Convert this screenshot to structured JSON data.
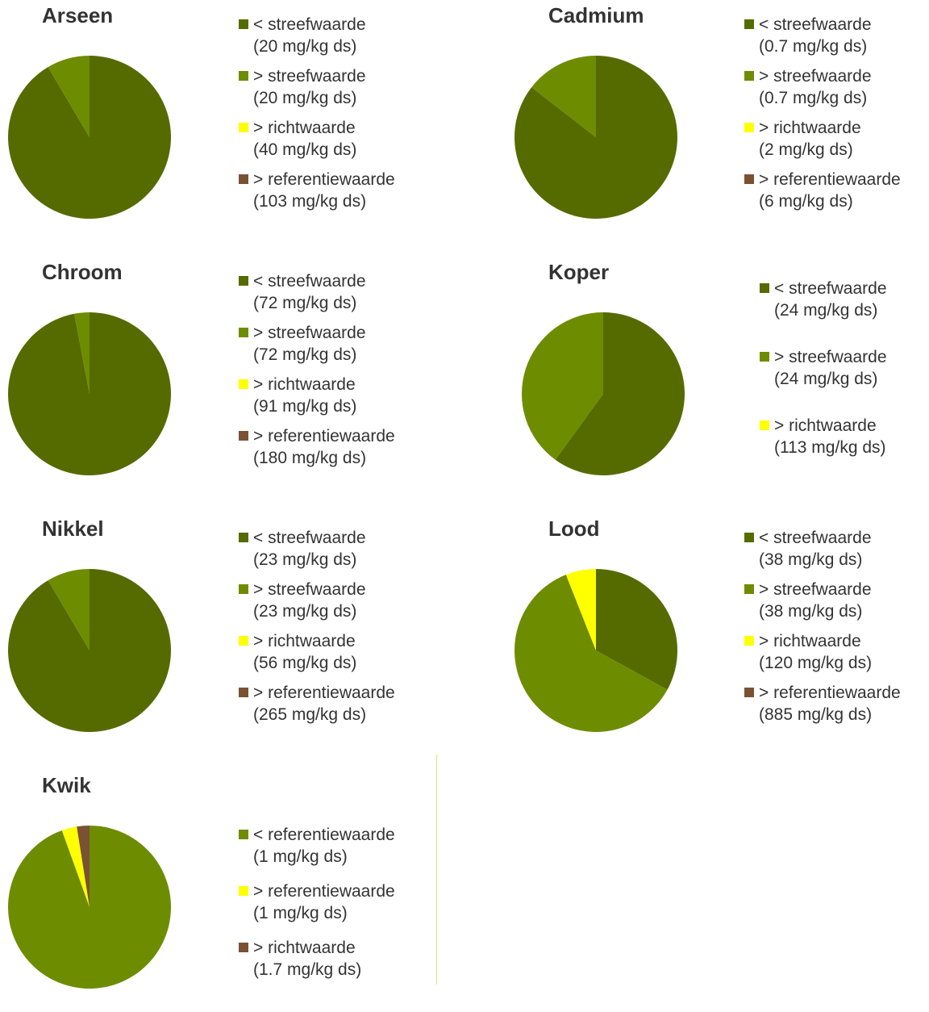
{
  "colors": {
    "below_target": "#556b00",
    "above_target": "#6e8c00",
    "above_guide": "#ffff00",
    "above_reference": "#7a5133",
    "divider": "#d9e38a"
  },
  "chart_data": [
    {
      "type": "pie",
      "title": "Arseen",
      "labels": [
        "< streefwaarde (20 mg/kg ds)",
        "> streefwaarde (20 mg/kg ds)",
        "> richtwaarde (40 mg/kg ds)",
        "> referentiewaarde (103 mg/kg ds)"
      ],
      "legend": [
        {
          "text": "< streefwaarde",
          "sub": "(20 mg/kg ds)",
          "color": "#556b00"
        },
        {
          "text": "> streefwaarde",
          "sub": "(20 mg/kg ds)",
          "color": "#6e8c00"
        },
        {
          "text": "> richtwaarde",
          "sub": "(40 mg/kg ds)",
          "color": "#ffff00"
        },
        {
          "text": "> referentiewaarde",
          "sub": "(103 mg/kg ds)",
          "color": "#7a5133"
        }
      ],
      "values": [
        91.5,
        8.5,
        0,
        0
      ],
      "legend_position": "right"
    },
    {
      "type": "pie",
      "title": "Cadmium",
      "labels": [
        "< streefwaarde (0.7 mg/kg ds)",
        "> streefwaarde (0.7 mg/kg ds)",
        "> richtwaarde (2 mg/kg ds)",
        "> referentiewaarde (6 mg/kg ds)"
      ],
      "legend": [
        {
          "text": "< streefwaarde",
          "sub": "(0.7 mg/kg ds)",
          "color": "#556b00"
        },
        {
          "text": "> streefwaarde",
          "sub": "(0.7 mg/kg ds)",
          "color": "#6e8c00"
        },
        {
          "text": "> richtwaarde",
          "sub": "(2 mg/kg ds)",
          "color": "#ffff00"
        },
        {
          "text": "> referentiewaarde",
          "sub": "(6 mg/kg ds)",
          "color": "#7a5133"
        }
      ],
      "values": [
        85.5,
        14.5,
        0,
        0
      ],
      "legend_position": "right"
    },
    {
      "type": "pie",
      "title": "Chroom",
      "labels": [
        "< streefwaarde (72 mg/kg ds)",
        "> streefwaarde (72 mg/kg ds)",
        "> richtwaarde (91 mg/kg ds)",
        "> referentiewaarde (180 mg/kg ds)"
      ],
      "legend": [
        {
          "text": "< streefwaarde",
          "sub": "(72 mg/kg ds)",
          "color": "#556b00"
        },
        {
          "text": "> streefwaarde",
          "sub": "(72 mg/kg ds)",
          "color": "#6e8c00"
        },
        {
          "text": "> richtwaarde",
          "sub": "(91 mg/kg ds)",
          "color": "#ffff00"
        },
        {
          "text": "> referentiewaarde",
          "sub": "(180 mg/kg ds)",
          "color": "#7a5133"
        }
      ],
      "values": [
        97,
        3,
        0,
        0
      ],
      "legend_position": "right"
    },
    {
      "type": "pie",
      "title": "Koper",
      "labels": [
        "< streefwaarde (24 mg/kg ds)",
        "> streefwaarde (24 mg/kg ds)",
        "> richtwaarde (113 mg/kg ds)"
      ],
      "legend": [
        {
          "text": "< streefwaarde",
          "sub": "(24 mg/kg ds)",
          "color": "#556b00"
        },
        {
          "text": "> streefwaarde",
          "sub": "(24 mg/kg ds)",
          "color": "#6e8c00"
        },
        {
          "text": "> richtwaarde",
          "sub": "(113 mg/kg ds)",
          "color": "#ffff00"
        }
      ],
      "values": [
        60,
        40,
        0
      ],
      "legend_position": "right"
    },
    {
      "type": "pie",
      "title": "Nikkel",
      "labels": [
        "< streefwaarde (23 mg/kg ds)",
        "> streefwaarde (23 mg/kg ds)",
        "> richtwaarde (56 mg/kg ds)",
        "> referentiewaarde (265 mg/kg ds)"
      ],
      "legend": [
        {
          "text": "< streefwaarde",
          "sub": "(23 mg/kg ds)",
          "color": "#556b00"
        },
        {
          "text": "> streefwaarde",
          "sub": "(23 mg/kg ds)",
          "color": "#6e8c00"
        },
        {
          "text": "> richtwaarde",
          "sub": "(56 mg/kg ds)",
          "color": "#ffff00"
        },
        {
          "text": "> referentiewaarde",
          "sub": "(265 mg/kg ds)",
          "color": "#7a5133"
        }
      ],
      "values": [
        91.5,
        8.5,
        0,
        0
      ],
      "legend_position": "right"
    },
    {
      "type": "pie",
      "title": "Lood",
      "labels": [
        "< streefwaarde (38 mg/kg ds)",
        "> streefwaarde (38 mg/kg ds)",
        "> richtwaarde (120 mg/kg ds)",
        "> referentiewaarde (885 mg/kg ds)"
      ],
      "legend": [
        {
          "text": "< streefwaarde",
          "sub": "(38 mg/kg ds)",
          "color": "#556b00"
        },
        {
          "text": "> streefwaarde",
          "sub": "(38 mg/kg ds)",
          "color": "#6e8c00"
        },
        {
          "text": "> richtwaarde",
          "sub": "(120 mg/kg ds)",
          "color": "#ffff00"
        },
        {
          "text": "> referentiewaarde",
          "sub": "(885 mg/kg ds)",
          "color": "#7a5133"
        }
      ],
      "values": [
        33,
        61,
        6,
        0
      ],
      "legend_position": "right"
    },
    {
      "type": "pie",
      "title": "Kwik",
      "labels": [
        "< referentiewaarde (1 mg/kg ds)",
        "> referentiewaarde (1 mg/kg ds)",
        "> richtwaarde (1.7 mg/kg ds)"
      ],
      "legend": [
        {
          "text": "< referentiewaarde",
          "sub": "(1 mg/kg ds)",
          "color": "#6e8c00"
        },
        {
          "text": "> referentiewaarde",
          "sub": "(1 mg/kg ds)",
          "color": "#ffff00"
        },
        {
          "text": "> richtwaarde",
          "sub": "(1.7 mg/kg ds)",
          "color": "#7a5133"
        }
      ],
      "values": [
        94.5,
        3,
        2.5
      ],
      "legend_position": "right"
    }
  ]
}
